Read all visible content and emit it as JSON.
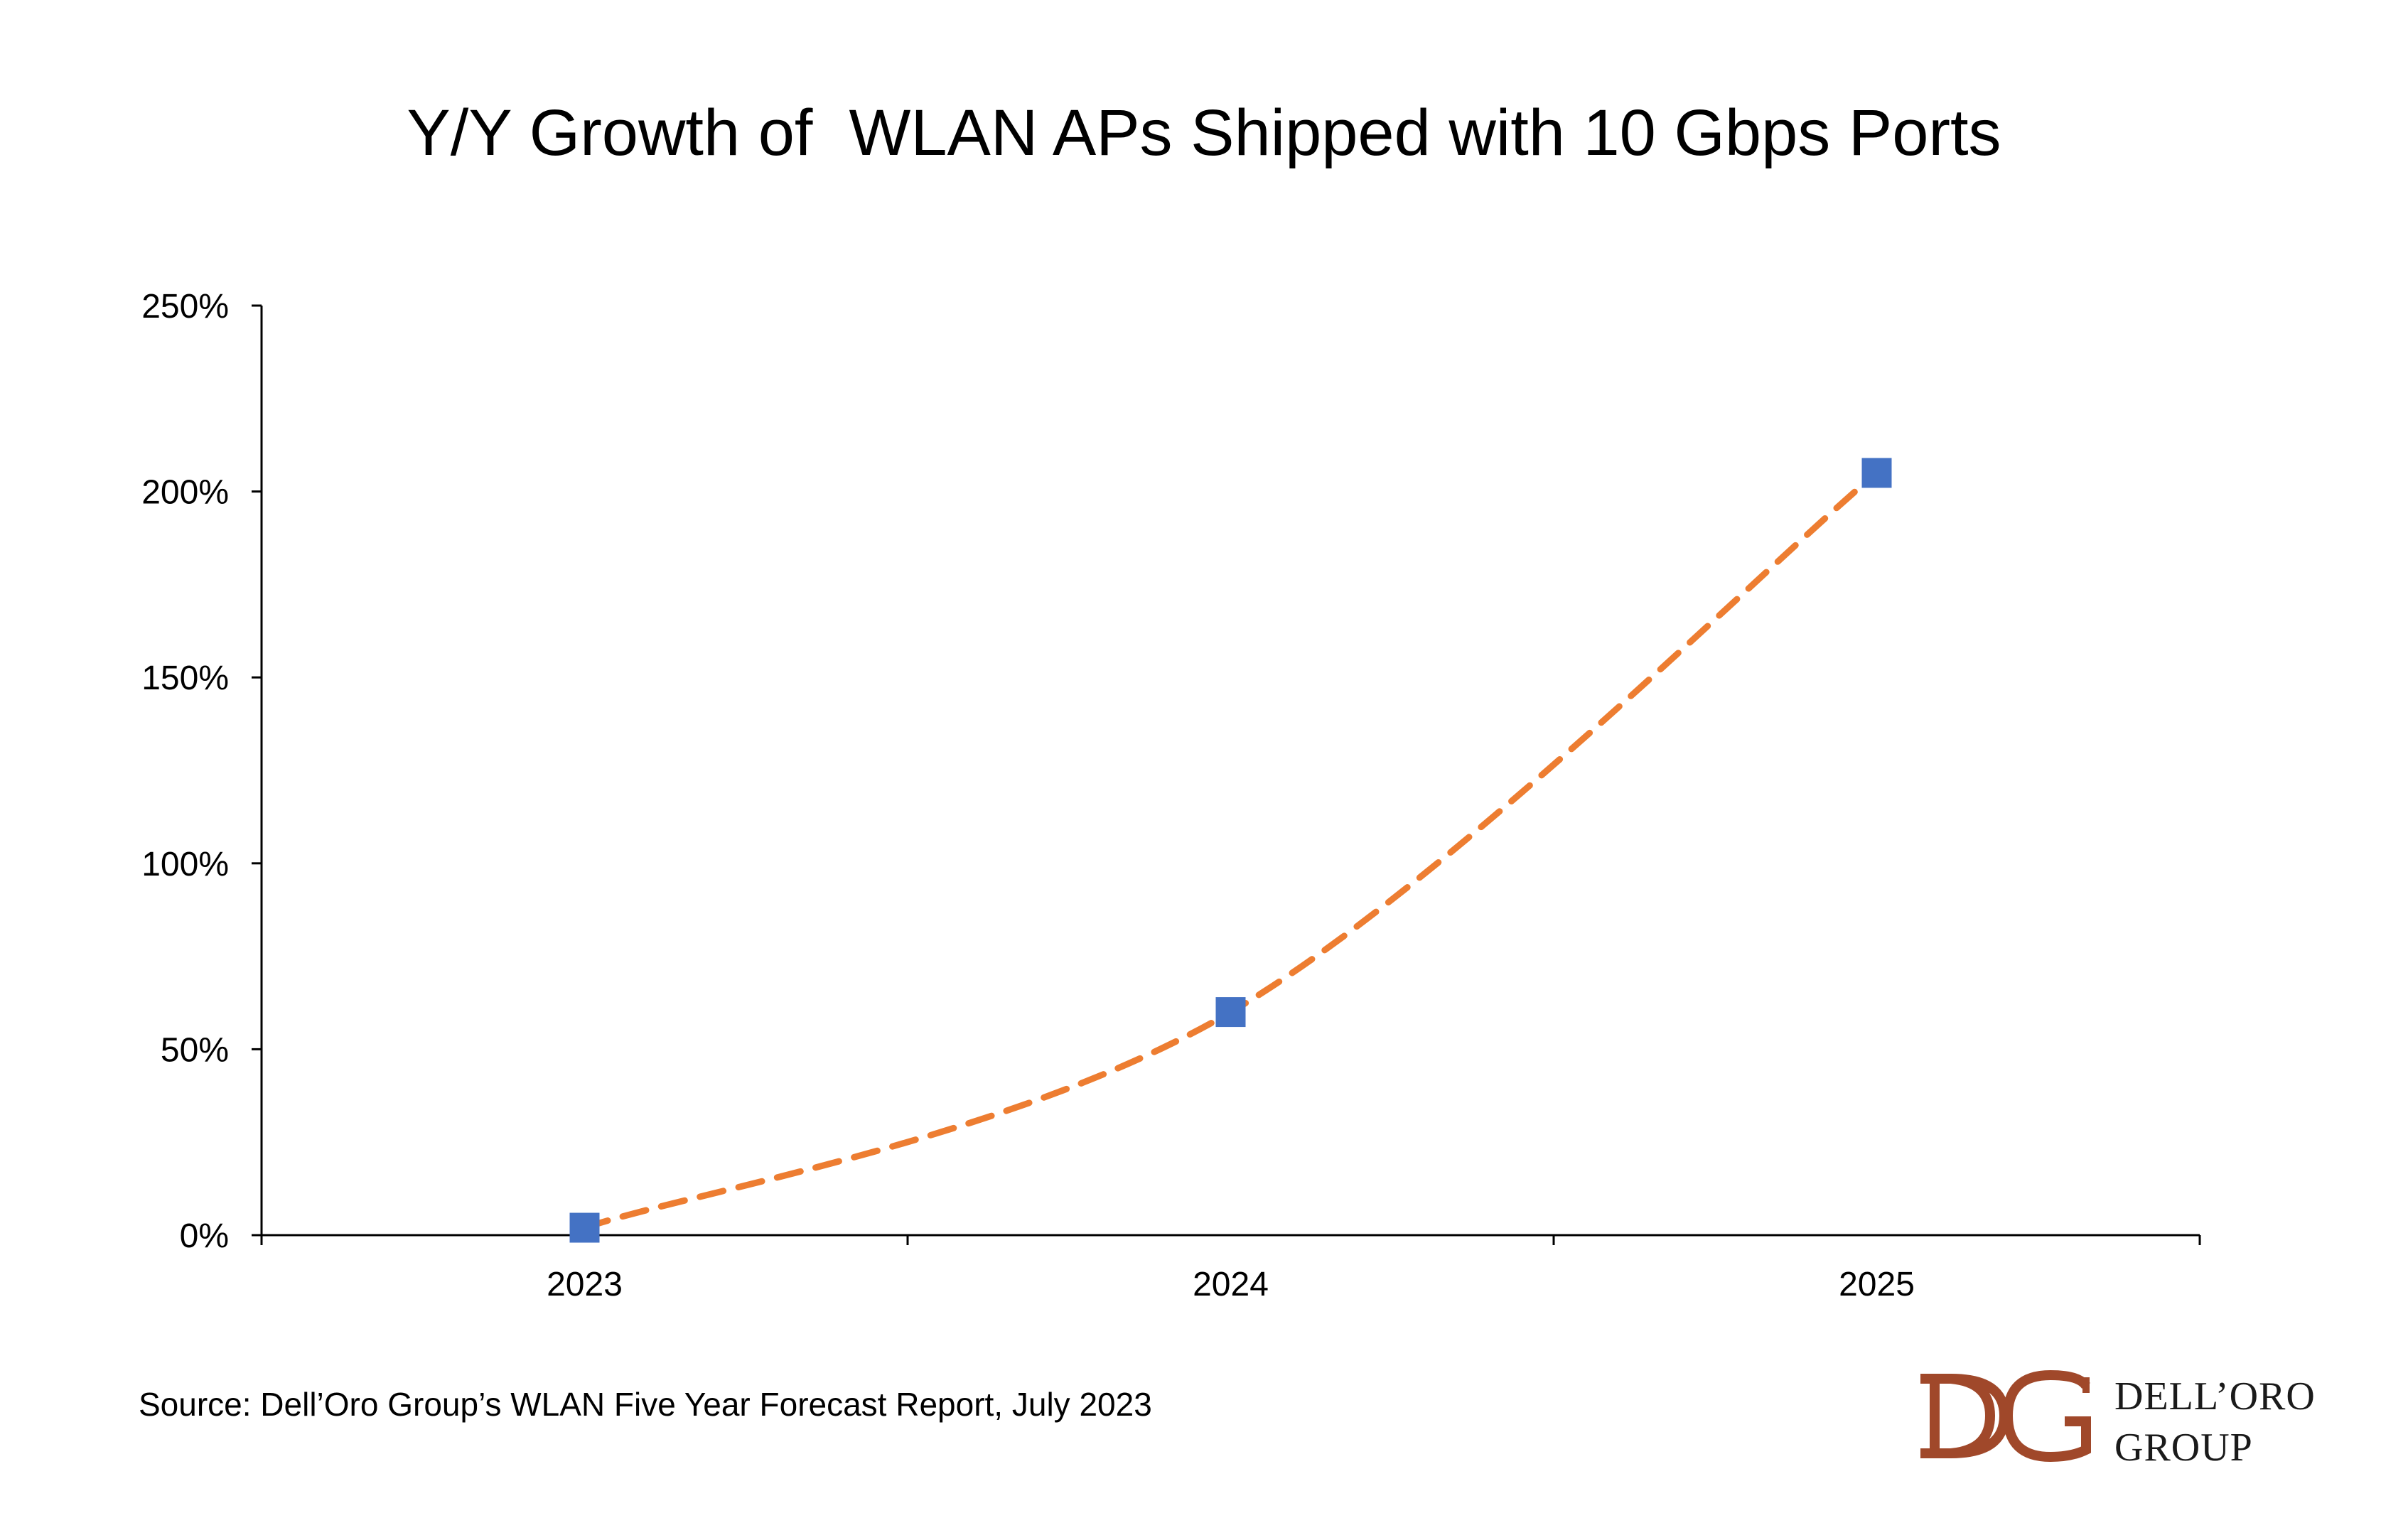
{
  "chart_data": {
    "type": "line",
    "title": "Y/Y Growth of  WLAN APs Shipped with 10 Gbps Ports",
    "categories": [
      "2023",
      "2024",
      "2025"
    ],
    "series": [
      {
        "values": [
          2,
          60,
          205
        ],
        "marker": "square",
        "marker_color": "#4472C4"
      }
    ],
    "trendline": {
      "style": "dashed",
      "color": "#ED7D31",
      "smooth": true
    },
    "y_ticks": [
      "0%",
      "50%",
      "100%",
      "150%",
      "200%",
      "250%"
    ],
    "ylim": [
      0,
      250
    ],
    "y_unit": "%",
    "grid": false,
    "legend": "none"
  },
  "source": "Source: Dell’Oro Group’s WLAN Five Year Forecast Report, July 2023",
  "logo": {
    "monogram": "DG",
    "line1": "DELL’ORO",
    "line2": "GROUP",
    "color": "#A0482A"
  }
}
